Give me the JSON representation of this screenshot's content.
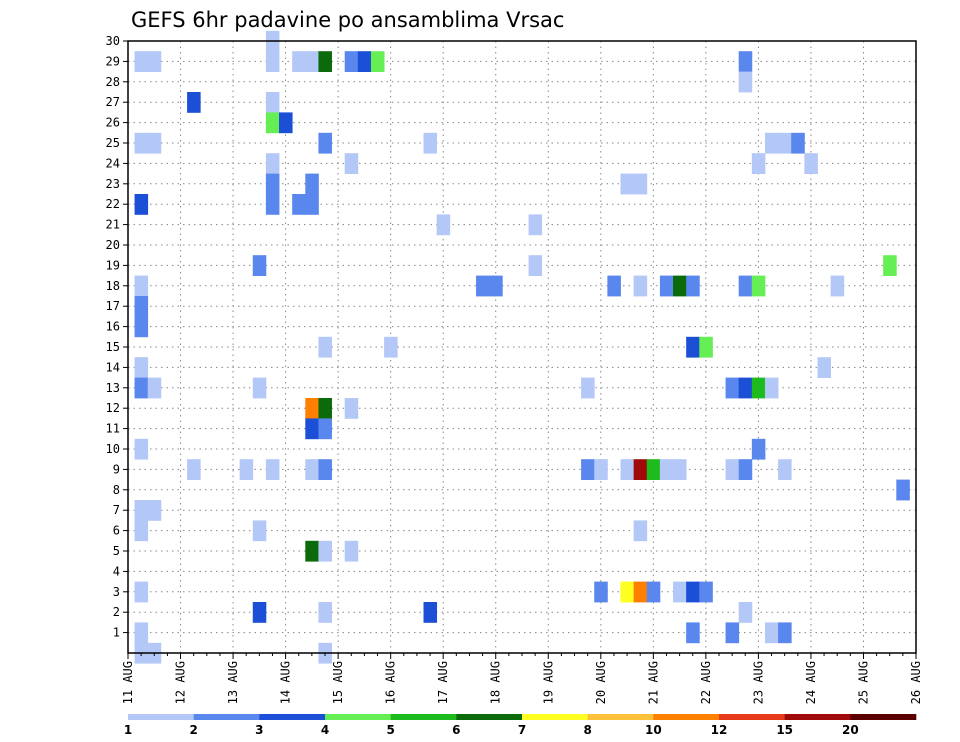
{
  "chart_data": {
    "type": "heatmap",
    "title": "GEFS 6hr padavine po ansamblima Vrsac",
    "xlabel": "",
    "ylabel": "",
    "x_tick_labels": [
      "11 AUG",
      "12 AUG",
      "13 AUG",
      "14 AUG",
      "15 AUG",
      "16 AUG",
      "17 AUG",
      "18 AUG",
      "19 AUG",
      "20 AUG",
      "21 AUG",
      "22 AUG",
      "23 AUG",
      "24 AUG",
      "25 AUG",
      "26 AUG"
    ],
    "xlim_days": [
      0,
      15
    ],
    "x_step": "6hr",
    "y_tick_labels": [
      "1",
      "2",
      "3",
      "4",
      "5",
      "6",
      "7",
      "8",
      "9",
      "10",
      "11",
      "12",
      "13",
      "14",
      "15",
      "16",
      "17",
      "18",
      "19",
      "20",
      "21",
      "22",
      "23",
      "24",
      "25",
      "26",
      "27",
      "28",
      "29",
      "30"
    ],
    "ylim": [
      0,
      30
    ],
    "grid": true,
    "legend": {
      "placement": "bottom",
      "levels": [
        "1",
        "2",
        "3",
        "4",
        "5",
        "6",
        "7",
        "8",
        "10",
        "12",
        "15",
        "20"
      ],
      "colors": [
        "#b4c8f7",
        "#5a87ee",
        "#1a4fd6",
        "#66ee55",
        "#1dbb1d",
        "#0b6b0b",
        "#ffff22",
        "#ffc03a",
        "#ff7f00",
        "#e63a1a",
        "#a00a0a",
        "#5b0000"
      ]
    },
    "cells": [
      {
        "day": 0.25,
        "member": 29,
        "level": 1
      },
      {
        "day": 0.5,
        "member": 29,
        "level": 1
      },
      {
        "day": 2.75,
        "member": 29,
        "level": 1
      },
      {
        "day": 3.25,
        "member": 29,
        "level": 1
      },
      {
        "day": 3.5,
        "member": 29,
        "level": 1
      },
      {
        "day": 3.75,
        "member": 29,
        "level": 6
      },
      {
        "day": 4.25,
        "member": 29,
        "level": 2
      },
      {
        "day": 4.5,
        "member": 29,
        "level": 3
      },
      {
        "day": 4.75,
        "member": 29,
        "level": 4
      },
      {
        "day": 11.75,
        "member": 29,
        "level": 2
      },
      {
        "day": 2.75,
        "member": 30,
        "level": 1
      },
      {
        "day": 11.75,
        "member": 28,
        "level": 1
      },
      {
        "day": 1.25,
        "member": 27,
        "level": 3
      },
      {
        "day": 2.75,
        "member": 27,
        "level": 1
      },
      {
        "day": 2.75,
        "member": 26,
        "level": 4
      },
      {
        "day": 3.0,
        "member": 26,
        "level": 3
      },
      {
        "day": 0.25,
        "member": 25,
        "level": 1
      },
      {
        "day": 0.5,
        "member": 25,
        "level": 1
      },
      {
        "day": 3.75,
        "member": 25,
        "level": 2
      },
      {
        "day": 5.75,
        "member": 25,
        "level": 1
      },
      {
        "day": 12.25,
        "member": 25,
        "level": 1
      },
      {
        "day": 12.5,
        "member": 25,
        "level": 1
      },
      {
        "day": 12.75,
        "member": 25,
        "level": 2
      },
      {
        "day": 2.75,
        "member": 24,
        "level": 1
      },
      {
        "day": 4.25,
        "member": 24,
        "level": 1
      },
      {
        "day": 12.0,
        "member": 24,
        "level": 1
      },
      {
        "day": 13.0,
        "member": 24,
        "level": 1
      },
      {
        "day": 2.75,
        "member": 23,
        "level": 2
      },
      {
        "day": 3.5,
        "member": 23,
        "level": 2
      },
      {
        "day": 9.5,
        "member": 23,
        "level": 1
      },
      {
        "day": 9.75,
        "member": 23,
        "level": 1
      },
      {
        "day": 0.25,
        "member": 22,
        "level": 3
      },
      {
        "day": 2.75,
        "member": 22,
        "level": 2
      },
      {
        "day": 3.25,
        "member": 22,
        "level": 2
      },
      {
        "day": 3.5,
        "member": 22,
        "level": 2
      },
      {
        "day": 6.0,
        "member": 21,
        "level": 1
      },
      {
        "day": 7.75,
        "member": 21,
        "level": 1
      },
      {
        "day": 7.75,
        "member": 19,
        "level": 1
      },
      {
        "day": 2.5,
        "member": 19,
        "level": 2
      },
      {
        "day": 14.5,
        "member": 19,
        "level": 4
      },
      {
        "day": 0.25,
        "member": 18,
        "level": 1
      },
      {
        "day": 6.75,
        "member": 18,
        "level": 2
      },
      {
        "day": 7.0,
        "member": 18,
        "level": 2
      },
      {
        "day": 9.25,
        "member": 18,
        "level": 2
      },
      {
        "day": 9.75,
        "member": 18,
        "level": 1
      },
      {
        "day": 10.25,
        "member": 18,
        "level": 2
      },
      {
        "day": 10.5,
        "member": 18,
        "level": 6
      },
      {
        "day": 10.75,
        "member": 18,
        "level": 2
      },
      {
        "day": 11.75,
        "member": 18,
        "level": 2
      },
      {
        "day": 12.0,
        "member": 18,
        "level": 4
      },
      {
        "day": 13.5,
        "member": 18,
        "level": 1
      },
      {
        "day": 0.25,
        "member": 17,
        "level": 2
      },
      {
        "day": 0.25,
        "member": 16,
        "level": 2
      },
      {
        "day": 3.75,
        "member": 15,
        "level": 1
      },
      {
        "day": 5.0,
        "member": 15,
        "level": 1
      },
      {
        "day": 10.75,
        "member": 15,
        "level": 3
      },
      {
        "day": 11.0,
        "member": 15,
        "level": 4
      },
      {
        "day": 0.25,
        "member": 14,
        "level": 1
      },
      {
        "day": 13.25,
        "member": 14,
        "level": 1
      },
      {
        "day": 0.25,
        "member": 13,
        "level": 2
      },
      {
        "day": 0.5,
        "member": 13,
        "level": 1
      },
      {
        "day": 2.5,
        "member": 13,
        "level": 1
      },
      {
        "day": 8.75,
        "member": 13,
        "level": 1
      },
      {
        "day": 11.5,
        "member": 13,
        "level": 2
      },
      {
        "day": 11.75,
        "member": 13,
        "level": 3
      },
      {
        "day": 12.0,
        "member": 13,
        "level": 5
      },
      {
        "day": 12.25,
        "member": 13,
        "level": 1
      },
      {
        "day": 3.5,
        "member": 12,
        "level": 10
      },
      {
        "day": 3.75,
        "member": 12,
        "level": 6
      },
      {
        "day": 4.25,
        "member": 12,
        "level": 1
      },
      {
        "day": 3.5,
        "member": 11,
        "level": 3
      },
      {
        "day": 3.75,
        "member": 11,
        "level": 2
      },
      {
        "day": 0.25,
        "member": 10,
        "level": 1
      },
      {
        "day": 12.0,
        "member": 10,
        "level": 2
      },
      {
        "day": 1.25,
        "member": 9,
        "level": 1
      },
      {
        "day": 2.25,
        "member": 9,
        "level": 1
      },
      {
        "day": 2.75,
        "member": 9,
        "level": 1
      },
      {
        "day": 3.5,
        "member": 9,
        "level": 1
      },
      {
        "day": 3.75,
        "member": 9,
        "level": 2
      },
      {
        "day": 8.75,
        "member": 9,
        "level": 2
      },
      {
        "day": 9.0,
        "member": 9,
        "level": 1
      },
      {
        "day": 9.5,
        "member": 9,
        "level": 1
      },
      {
        "day": 9.75,
        "member": 9,
        "level": 15
      },
      {
        "day": 10.0,
        "member": 9,
        "level": 5
      },
      {
        "day": 10.25,
        "member": 9,
        "level": 1
      },
      {
        "day": 10.5,
        "member": 9,
        "level": 1
      },
      {
        "day": 11.5,
        "member": 9,
        "level": 1
      },
      {
        "day": 11.75,
        "member": 9,
        "level": 2
      },
      {
        "day": 12.5,
        "member": 9,
        "level": 1
      },
      {
        "day": 14.75,
        "member": 8,
        "level": 2
      },
      {
        "day": 0.25,
        "member": 7,
        "level": 1
      },
      {
        "day": 0.5,
        "member": 7,
        "level": 1
      },
      {
        "day": 0.25,
        "member": 6,
        "level": 1
      },
      {
        "day": 2.5,
        "member": 6,
        "level": 1
      },
      {
        "day": 9.75,
        "member": 6,
        "level": 1
      },
      {
        "day": 3.5,
        "member": 5,
        "level": 6
      },
      {
        "day": 3.75,
        "member": 5,
        "level": 1
      },
      {
        "day": 4.25,
        "member": 5,
        "level": 1
      },
      {
        "day": 0.25,
        "member": 3,
        "level": 1
      },
      {
        "day": 9.0,
        "member": 3,
        "level": 2
      },
      {
        "day": 9.5,
        "member": 3,
        "level": 7
      },
      {
        "day": 9.75,
        "member": 3,
        "level": 10
      },
      {
        "day": 10.0,
        "member": 3,
        "level": 2
      },
      {
        "day": 10.5,
        "member": 3,
        "level": 1
      },
      {
        "day": 10.75,
        "member": 3,
        "level": 3
      },
      {
        "day": 11.0,
        "member": 3,
        "level": 2
      },
      {
        "day": 2.5,
        "member": 2,
        "level": 3
      },
      {
        "day": 3.75,
        "member": 2,
        "level": 1
      },
      {
        "day": 5.75,
        "member": 2,
        "level": 3
      },
      {
        "day": 11.75,
        "member": 2,
        "level": 1
      },
      {
        "day": 0.25,
        "member": 1,
        "level": 1
      },
      {
        "day": 10.75,
        "member": 1,
        "level": 2
      },
      {
        "day": 11.5,
        "member": 1,
        "level": 2
      },
      {
        "day": 12.25,
        "member": 1,
        "level": 1
      },
      {
        "day": 12.5,
        "member": 1,
        "level": 2
      },
      {
        "day": 0.25,
        "member": 0,
        "level": 1
      },
      {
        "day": 0.5,
        "member": 0,
        "level": 1
      },
      {
        "day": 3.75,
        "member": 0,
        "level": 1
      }
    ]
  }
}
